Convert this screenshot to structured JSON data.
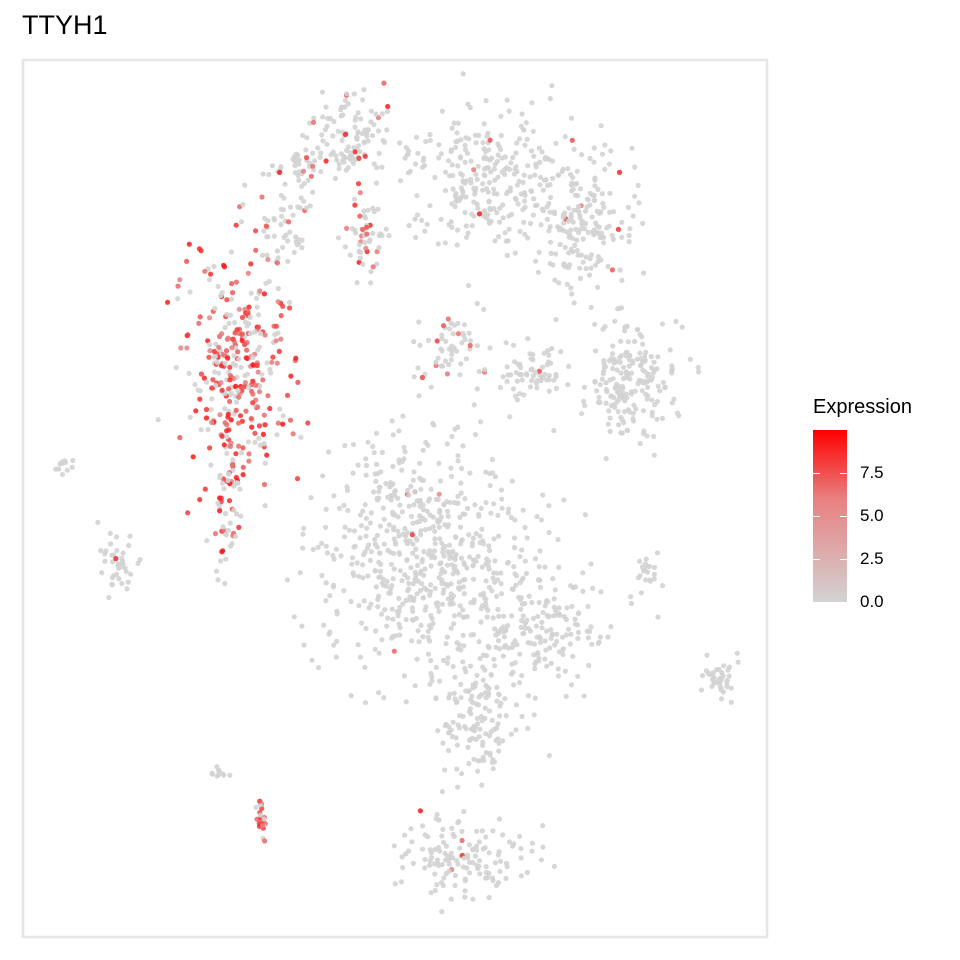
{
  "chart_data": {
    "type": "scatter",
    "title": "TTYH1",
    "xlabel": "",
    "ylabel": "",
    "grid": false,
    "legend": {
      "title": "Expression",
      "position": "right",
      "ticks": [
        "0.0",
        "2.5",
        "5.0",
        "7.5"
      ],
      "range": [
        0,
        10
      ],
      "color_low": "#d3d3d3",
      "color_high": "#ff0000"
    },
    "clusters": [
      {
        "id": "top-middle",
        "center": [
          350,
          135
        ],
        "spread": [
          26,
          30
        ],
        "n": 110,
        "expr": "low"
      },
      {
        "id": "top-left-arm",
        "center": [
          300,
          170
        ],
        "spread": [
          24,
          16
        ],
        "n": 40,
        "expr": "low"
      },
      {
        "id": "top-right-a",
        "center": [
          485,
          175
        ],
        "spread": [
          50,
          45
        ],
        "n": 260,
        "expr": "none"
      },
      {
        "id": "top-right-b",
        "center": [
          580,
          220
        ],
        "spread": [
          35,
          48
        ],
        "n": 200,
        "expr": "none"
      },
      {
        "id": "small-upper-left",
        "center": [
          285,
          225
        ],
        "spread": [
          15,
          28
        ],
        "n": 45,
        "expr": "low"
      },
      {
        "id": "mid-stalk",
        "center": [
          362,
          235
        ],
        "spread": [
          14,
          28
        ],
        "n": 50,
        "expr": "mid"
      },
      {
        "id": "left-expressing",
        "center": [
          238,
          365
        ],
        "spread": [
          32,
          80
        ],
        "n": 330,
        "expr": "high"
      },
      {
        "id": "left-tail",
        "center": [
          228,
          505
        ],
        "spread": [
          9,
          40
        ],
        "n": 55,
        "expr": "mid"
      },
      {
        "id": "center-small",
        "center": [
          450,
          345
        ],
        "spread": [
          24,
          26
        ],
        "n": 55,
        "expr": "low"
      },
      {
        "id": "right-mid",
        "center": [
          630,
          380
        ],
        "spread": [
          32,
          40
        ],
        "n": 200,
        "expr": "none"
      },
      {
        "id": "right-mid-arm",
        "center": [
          530,
          370
        ],
        "spread": [
          24,
          22
        ],
        "n": 65,
        "expr": "none"
      },
      {
        "id": "big-center",
        "center": [
          425,
          555
        ],
        "spread": [
          72,
          80
        ],
        "n": 620,
        "expr": "none"
      },
      {
        "id": "big-right-arm",
        "center": [
          545,
          630
        ],
        "spread": [
          42,
          38
        ],
        "n": 160,
        "expr": "none"
      },
      {
        "id": "lower-stem",
        "center": [
          480,
          715
        ],
        "spread": [
          28,
          45
        ],
        "n": 140,
        "expr": "none"
      },
      {
        "id": "bottom",
        "center": [
          465,
          855
        ],
        "spread": [
          40,
          25
        ],
        "n": 140,
        "expr": "none"
      },
      {
        "id": "far-left",
        "center": [
          115,
          565
        ],
        "spread": [
          12,
          20
        ],
        "n": 40,
        "expr": "none"
      },
      {
        "id": "far-left-top",
        "center": [
          62,
          465
        ],
        "spread": [
          6,
          6
        ],
        "n": 12,
        "expr": "none"
      },
      {
        "id": "far-right-a",
        "center": [
          718,
          678
        ],
        "spread": [
          12,
          13
        ],
        "n": 40,
        "expr": "none"
      },
      {
        "id": "far-right-b",
        "center": [
          648,
          572
        ],
        "spread": [
          7,
          14
        ],
        "n": 22,
        "expr": "none"
      },
      {
        "id": "lower-left-dense",
        "center": [
          262,
          815
        ],
        "spread": [
          3,
          14
        ],
        "n": 25,
        "expr": "high"
      },
      {
        "id": "lower-left-line",
        "center": [
          218,
          772
        ],
        "spread": [
          8,
          4
        ],
        "n": 10,
        "expr": "none"
      }
    ]
  }
}
